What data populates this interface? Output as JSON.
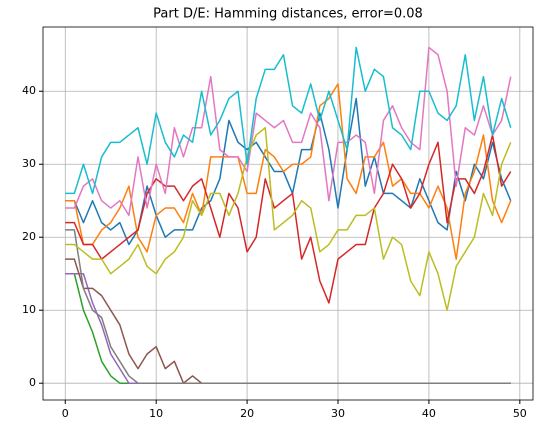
{
  "chart_data": {
    "type": "line",
    "title": "Part D/E: Hamming distances, error=0.08",
    "x": [
      0,
      1,
      2,
      3,
      4,
      5,
      6,
      7,
      8,
      9,
      10,
      11,
      12,
      13,
      14,
      15,
      16,
      17,
      18,
      19,
      20,
      21,
      22,
      23,
      24,
      25,
      26,
      27,
      28,
      29,
      30,
      31,
      32,
      33,
      34,
      35,
      36,
      37,
      38,
      39,
      40,
      41,
      42,
      43,
      44,
      45,
      46,
      47,
      48,
      49
    ],
    "xlim": [
      -2.45,
      51.45
    ],
    "xticks": [
      0,
      10,
      20,
      30,
      40,
      50
    ],
    "ylim": [
      -2.3,
      48.8
    ],
    "yticks": [
      0,
      10,
      20,
      30,
      40
    ],
    "grid": true,
    "series": [
      {
        "color": "#1f77b4",
        "values": [
          25,
          25,
          22,
          25,
          22,
          21,
          22,
          19,
          21,
          27,
          23,
          20,
          21,
          21,
          21,
          24,
          25,
          28,
          36,
          33,
          32,
          33,
          31,
          29,
          29,
          26,
          32,
          32,
          37,
          32,
          24,
          32,
          39,
          27,
          31,
          26,
          26,
          25,
          24,
          28,
          25,
          22,
          21,
          29,
          25,
          30,
          28,
          33,
          28,
          25
        ]
      },
      {
        "color": "#ff7f0e",
        "values": [
          25,
          25,
          19,
          19,
          21,
          22,
          24,
          27,
          20,
          18,
          23,
          24,
          24,
          22,
          26,
          23,
          31,
          31,
          31,
          31,
          26,
          26,
          32,
          31,
          29,
          30,
          30,
          31,
          38,
          39,
          41,
          28,
          26,
          31,
          31,
          33,
          27,
          28,
          26,
          26,
          24,
          27,
          24,
          17,
          26,
          29,
          34,
          25,
          22,
          25
        ]
      },
      {
        "color": "#2ca02c",
        "values": [
          15,
          15,
          10,
          7,
          3,
          1,
          0,
          0,
          0,
          0,
          0,
          0,
          0,
          0,
          0,
          0,
          0,
          0,
          0,
          0,
          0,
          0,
          0,
          0,
          0,
          0,
          0,
          0,
          0,
          0,
          0,
          0,
          0,
          0,
          0,
          0,
          0,
          0,
          0,
          0,
          0,
          0,
          0,
          0,
          0,
          0,
          0,
          0,
          0,
          0
        ]
      },
      {
        "color": "#d62728",
        "values": [
          22,
          22,
          19,
          19,
          17,
          18,
          19,
          20,
          21,
          26,
          28,
          27,
          27,
          25,
          27,
          28,
          24,
          20,
          26,
          24,
          18,
          20,
          28,
          24,
          25,
          26,
          17,
          20,
          14,
          11,
          17,
          18,
          19,
          19,
          24,
          26,
          30,
          28,
          24,
          26,
          30,
          33,
          22,
          28,
          28,
          26,
          29,
          34,
          27,
          29
        ]
      },
      {
        "color": "#9467bd",
        "values": [
          15,
          15,
          15,
          11,
          8,
          4,
          2,
          0,
          0,
          0,
          0,
          0,
          0,
          0,
          0,
          0,
          0,
          0,
          0,
          0,
          0,
          0,
          0,
          0,
          0,
          0,
          0,
          0,
          0,
          0,
          0,
          0,
          0,
          0,
          0,
          0,
          0,
          0,
          0,
          0,
          0,
          0,
          0,
          0,
          0,
          0,
          0,
          0,
          0,
          0
        ]
      },
      {
        "color": "#8c564b",
        "values": [
          17,
          17,
          13,
          13,
          12,
          10,
          8,
          4,
          2,
          4,
          5,
          2,
          3,
          0,
          1,
          0,
          0,
          0,
          0,
          0,
          0,
          0,
          0,
          0,
          0,
          0,
          0,
          0,
          0,
          0,
          0,
          0,
          0,
          0,
          0,
          0,
          0,
          0,
          0,
          0,
          0,
          0,
          0,
          0,
          0,
          0,
          0,
          0,
          0,
          0
        ]
      },
      {
        "color": "#e377c2",
        "values": [
          24,
          24,
          27,
          28,
          25,
          24,
          25,
          23,
          31,
          24,
          30,
          26,
          35,
          31,
          35,
          35,
          42,
          32,
          31,
          31,
          29,
          37,
          36,
          35,
          36,
          33,
          33,
          37,
          35,
          25,
          33,
          33,
          34,
          33,
          26,
          36,
          38,
          35,
          33,
          32,
          46,
          45,
          40,
          27,
          35,
          34,
          38,
          34,
          36,
          42
        ]
      },
      {
        "color": "#7f7f7f",
        "values": [
          21,
          21,
          13,
          10,
          9,
          5,
          3,
          1,
          0,
          0,
          0,
          0,
          0,
          0,
          0,
          0,
          0,
          0,
          0,
          0,
          0,
          0,
          0,
          0,
          0,
          0,
          0,
          0,
          0,
          0,
          0,
          0,
          0,
          0,
          0,
          0,
          0,
          0,
          0,
          0,
          0,
          0,
          0,
          0,
          0,
          0,
          0,
          0,
          0,
          0
        ]
      },
      {
        "color": "#bcbd22",
        "values": [
          19,
          19,
          18,
          17,
          17,
          15,
          16,
          17,
          19,
          16,
          15,
          17,
          18,
          20,
          25,
          23,
          26,
          26,
          23,
          26,
          31,
          34,
          35,
          21,
          22,
          23,
          25,
          24,
          18,
          19,
          21,
          21,
          23,
          23,
          24,
          17,
          20,
          19,
          14,
          12,
          18,
          15,
          10,
          16,
          18,
          20,
          26,
          23,
          30,
          33
        ]
      },
      {
        "color": "#17becf",
        "values": [
          26,
          26,
          30,
          26,
          31,
          33,
          33,
          34,
          35,
          30,
          37,
          33,
          31,
          34,
          33,
          40,
          34,
          36,
          39,
          40,
          30,
          39,
          43,
          43,
          45,
          38,
          37,
          41,
          36,
          40,
          36,
          32,
          46,
          40,
          43,
          42,
          35,
          34,
          32,
          40,
          40,
          37,
          36,
          38,
          45,
          36,
          42,
          34,
          39,
          35
        ]
      }
    ]
  }
}
